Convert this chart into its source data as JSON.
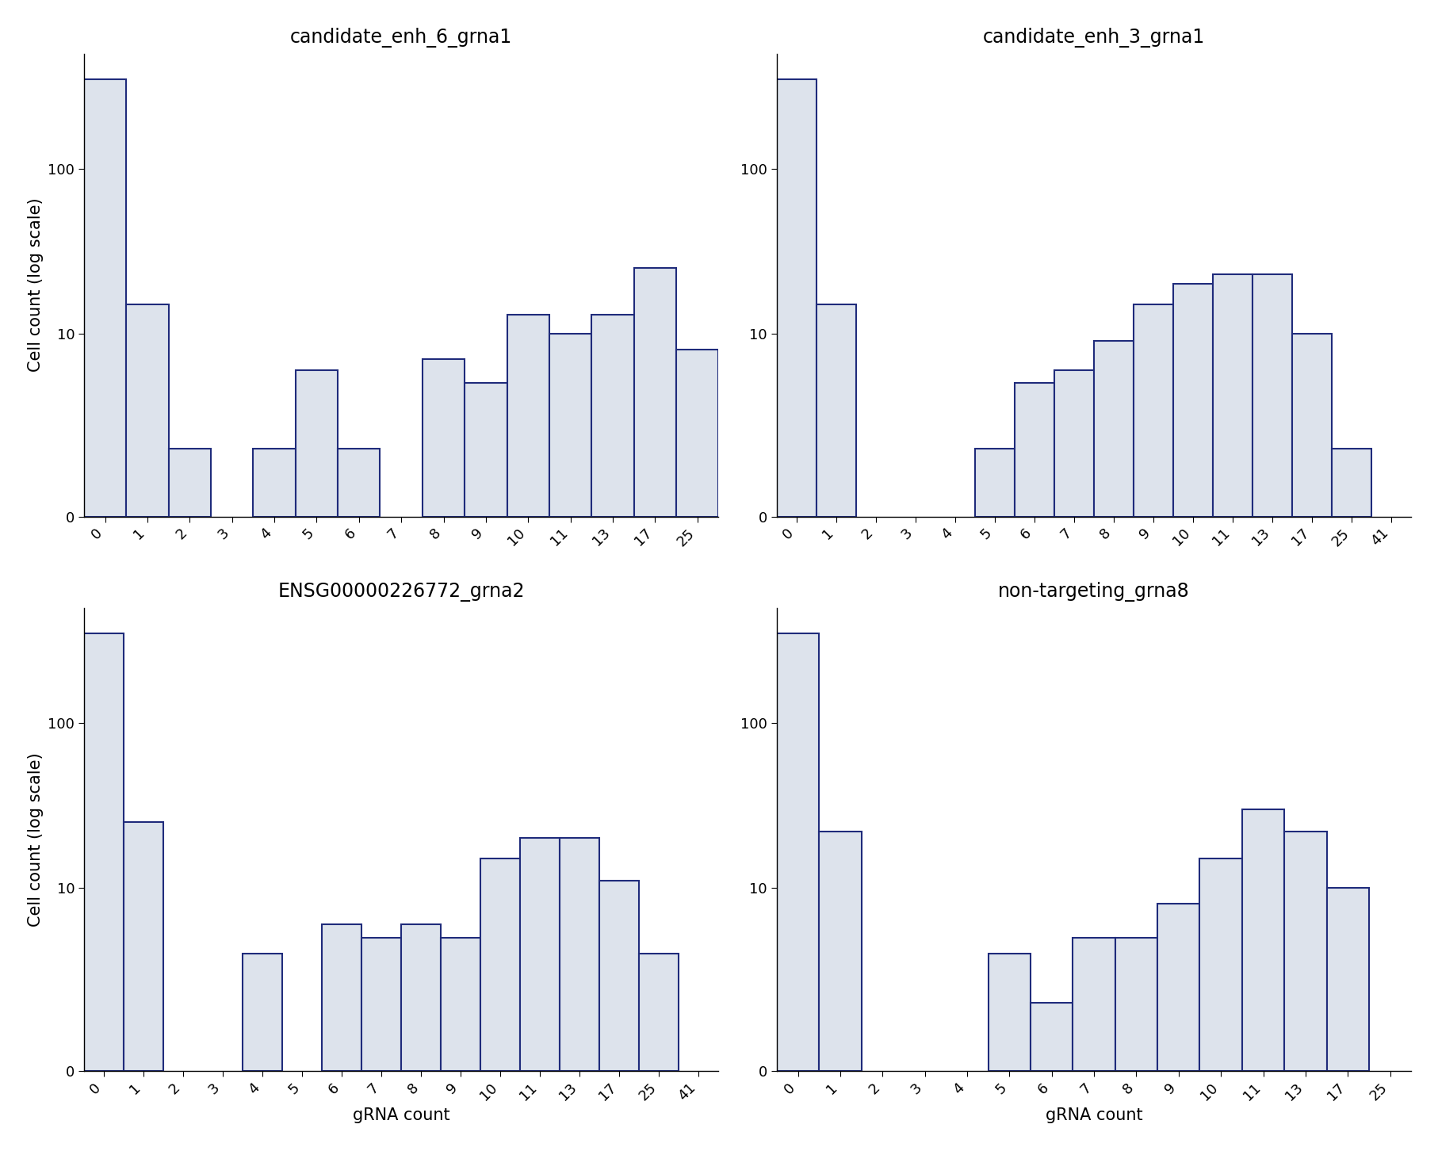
{
  "panels": [
    {
      "title": "candidate_enh_6_grna1",
      "xtick_labels": [
        "0",
        "1",
        "2",
        "3",
        "4",
        "5",
        "6",
        "7",
        "8",
        "9",
        "10",
        "11",
        "13",
        "17",
        "25"
      ],
      "values": [
        350,
        15,
        2,
        0,
        2,
        6,
        2,
        0,
        7,
        5,
        13,
        10,
        13,
        25,
        8
      ],
      "ylabel": "Cell count (log scale)",
      "xlabel": ""
    },
    {
      "title": "candidate_enh_3_grna1",
      "xtick_labels": [
        "0",
        "1",
        "2",
        "3",
        "4",
        "5",
        "6",
        "7",
        "8",
        "9",
        "10",
        "11",
        "13",
        "17",
        "25",
        "41"
      ],
      "values": [
        350,
        15,
        0,
        0,
        0,
        2,
        5,
        6,
        9,
        15,
        20,
        23,
        23,
        10,
        2,
        0
      ],
      "ylabel": "",
      "xlabel": ""
    },
    {
      "title": "ENSG00000226772_grna2",
      "xtick_labels": [
        "0",
        "1",
        "2",
        "3",
        "4",
        "5",
        "6",
        "7",
        "8",
        "9",
        "10",
        "11",
        "13",
        "17",
        "25",
        "41"
      ],
      "values": [
        350,
        25,
        0,
        0,
        4,
        0,
        6,
        5,
        6,
        5,
        15,
        20,
        20,
        11,
        4,
        0
      ],
      "ylabel": "Cell count (log scale)",
      "xlabel": "gRNA count"
    },
    {
      "title": "non-targeting_grna8",
      "xtick_labels": [
        "0",
        "1",
        "2",
        "3",
        "4",
        "5",
        "6",
        "7",
        "8",
        "9",
        "10",
        "11",
        "13",
        "17",
        "25"
      ],
      "values": [
        350,
        22,
        0,
        0,
        0,
        4,
        2,
        5,
        5,
        8,
        15,
        30,
        22,
        10,
        0
      ],
      "ylabel": "",
      "xlabel": "gRNA count"
    }
  ],
  "bar_facecolor": "#dde3ec",
  "bar_edgecolor": "#1f2b7b",
  "bar_linewidth": 1.5,
  "title_fontsize": 17,
  "label_fontsize": 15,
  "tick_fontsize": 13,
  "background_color": "#ffffff",
  "yticks": [
    0,
    10,
    100
  ],
  "ytick_labels": [
    "0",
    "10",
    "100"
  ],
  "ylim_max": 500
}
